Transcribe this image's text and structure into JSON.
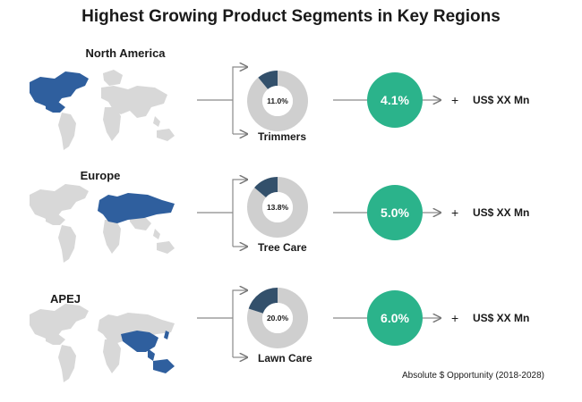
{
  "title": "Highest Growing Product Segments in Key Regions",
  "footnote": "Absolute $ Opportunity (2018-2028)",
  "colors": {
    "highlight": "#2f5f9e",
    "map_gray": "#d8d8d8",
    "donut_dark": "#33506b",
    "donut_light": "#cfcfcf",
    "growth": "#2bb38b"
  },
  "rows": [
    {
      "region": "North America",
      "segment": "Trimmers",
      "share_label": "11.0%",
      "growth": "4.1%",
      "plus": "+",
      "opportunity": "US$ XX Mn"
    },
    {
      "region": "Europe",
      "segment": "Tree Care",
      "share_label": "13.8%",
      "growth": "5.0%",
      "plus": "+",
      "opportunity": "US$ XX Mn"
    },
    {
      "region": "APEJ",
      "segment": "Lawn Care",
      "share_label": "20.0%",
      "growth": "6.0%",
      "plus": "+",
      "opportunity": "US$ XX Mn"
    }
  ],
  "chart_data": {
    "type": "pie",
    "title": "Highest Growing Product Segments in Key Regions",
    "charts": [
      {
        "region": "North America",
        "segment": "Trimmers",
        "value": 11.0,
        "growth_percent": 4.1
      },
      {
        "region": "Europe",
        "segment": "Tree Care",
        "value": 13.8,
        "growth_percent": 5.0
      },
      {
        "region": "APEJ",
        "segment": "Lawn Care",
        "value": 20.0,
        "growth_percent": 6.0
      }
    ]
  }
}
